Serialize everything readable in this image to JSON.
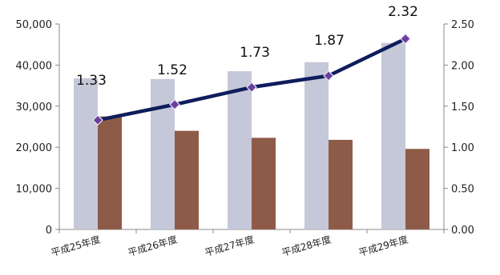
{
  "chart_data": {
    "type": "bar",
    "categories": [
      "平成25年度",
      "平成26年度",
      "平成27年度",
      "平成28年度",
      "平成29年度"
    ],
    "series": [
      {
        "type": "bar",
        "axis": "left",
        "color": "#c5c8d8",
        "values": [
          36800,
          36600,
          38500,
          40700,
          45400
        ]
      },
      {
        "type": "bar",
        "axis": "left",
        "color": "#8e5b48",
        "values": [
          27500,
          24000,
          22300,
          21800,
          19600
        ]
      },
      {
        "type": "line",
        "axis": "right",
        "color": "#0e1d5c",
        "marker_color": "#6b3fa0",
        "values": [
          1.33,
          1.52,
          1.73,
          1.87,
          2.32
        ]
      }
    ],
    "data_labels": [
      "1.33",
      "1.52",
      "1.73",
      "1.87",
      "2.32"
    ],
    "left_axis": {
      "min": 0,
      "max": 50000,
      "ticks": [
        "0",
        "10,000",
        "20,000",
        "30,000",
        "40,000",
        "50,000"
      ]
    },
    "right_axis": {
      "min": 0,
      "max": 2.5,
      "ticks": [
        "0.00",
        "0.50",
        "1.00",
        "1.50",
        "2.00",
        "2.50"
      ]
    },
    "grid": false,
    "legend": "none"
  }
}
